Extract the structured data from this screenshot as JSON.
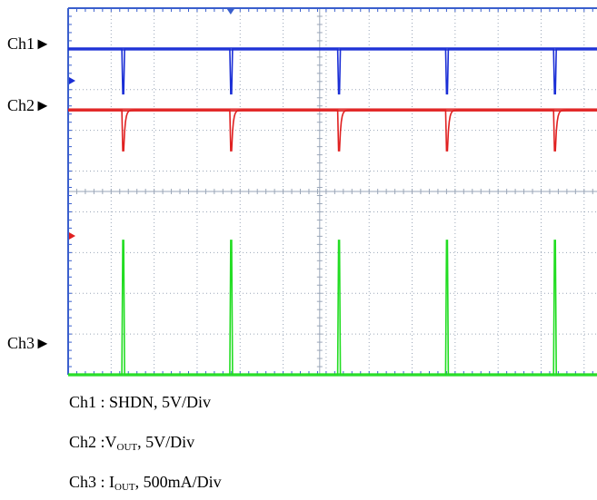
{
  "chart_data": {
    "type": "line",
    "channels": [
      {
        "id": "ch1",
        "label": "Ch1",
        "color": "#1a2ed6",
        "baseline_div": 1,
        "pulse_depth_div": 1.1,
        "pulse_direction": "down"
      },
      {
        "id": "ch2",
        "label": "Ch2",
        "color": "#e02020",
        "baseline_div": 2.5,
        "pulse_depth_div": 1.0,
        "pulse_direction": "down",
        "recovery": "exponential"
      },
      {
        "id": "ch3",
        "label": "Ch3",
        "color": "#22dd22",
        "baseline_div": 9,
        "pulse_height_div": 3.3,
        "pulse_direction": "up"
      }
    ],
    "pulse_times_div": [
      1.27,
      3.78,
      6.29,
      8.8,
      11.31
    ],
    "x_divisions": 12.3,
    "y_divisions": 9,
    "grid": true,
    "grid_style": "dotted",
    "colors": {
      "frame": "#3a5fcd",
      "grid": "#9aa6b8"
    }
  },
  "legend": {
    "ch1_caption": "Ch1 : SHDN, 5V/Div",
    "ch2_prefix": "Ch2 :V",
    "ch2_sub": "OUT",
    "ch2_suffix": ", 5V/Div",
    "ch3_prefix": "Ch3 : I",
    "ch3_sub": "OUT",
    "ch3_suffix": ", 500mA/Div"
  }
}
